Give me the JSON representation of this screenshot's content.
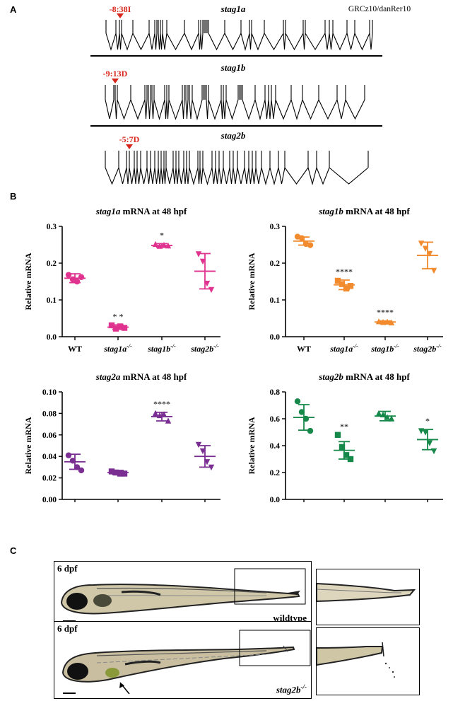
{
  "panels": {
    "a": "A",
    "b": "B",
    "c": "C"
  },
  "gene_structures": {
    "assembly": "GRCz10/danRer10",
    "genes": [
      {
        "name": "stag1a",
        "mutation": "-8:38I"
      },
      {
        "name": "stag1b",
        "mutation": "-9:13D"
      },
      {
        "name": "stag2b",
        "mutation": "-5:7D"
      }
    ]
  },
  "chart_data": [
    {
      "type": "scatter",
      "title_gene": "stag1a",
      "title_suffix": " mRNA at 48 hpf",
      "ylabel": "Relative mRNA",
      "ylim": [
        0,
        0.3
      ],
      "yticks": [
        0.0,
        0.1,
        0.2,
        0.3
      ],
      "ytick_labels": [
        "0.0",
        "0.1",
        "0.2",
        "0.3"
      ],
      "color": "#e0338f",
      "categories": [
        "WT",
        "stag1a",
        "stag1b",
        "stag2b"
      ],
      "cat_sup": [
        "",
        "-/-",
        "-/-",
        "-/-"
      ],
      "means": [
        0.159,
        0.026,
        0.248,
        0.178
      ],
      "sd": [
        0.012,
        0.006,
        0.005,
        0.048
      ],
      "points": [
        [
          0.168,
          0.156,
          0.15,
          0.162
        ],
        [
          0.031,
          0.022,
          0.028,
          0.024
        ],
        [
          0.251,
          0.246,
          0.249,
          0.247
        ],
        [
          0.225,
          0.205,
          0.145,
          0.128
        ]
      ],
      "markers": [
        "circle",
        "square",
        "triangle",
        "triangle-down"
      ],
      "significance": [
        "",
        "* *",
        "*",
        ""
      ]
    },
    {
      "type": "scatter",
      "title_gene": "stag1b",
      "title_suffix": " mRNA at 48 hpf",
      "ylabel": "Relative mRNA",
      "ylim": [
        0,
        0.3
      ],
      "yticks": [
        0.0,
        0.1,
        0.2,
        0.3
      ],
      "ytick_labels": [
        "0.0",
        "0.1",
        "0.2",
        "0.3"
      ],
      "color": "#f28a2e",
      "categories": [
        "WT",
        "stag1a",
        "stag1b",
        "stag2b"
      ],
      "cat_sup": [
        "",
        "-/-",
        "-/-",
        "-/-"
      ],
      "means": [
        0.26,
        0.141,
        0.04,
        0.221
      ],
      "sd": [
        0.011,
        0.013,
        0.003,
        0.036
      ],
      "points": [
        [
          0.272,
          0.268,
          0.252,
          0.249
        ],
        [
          0.152,
          0.143,
          0.131,
          0.138
        ],
        [
          0.041,
          0.039,
          0.04,
          0.038
        ],
        [
          0.254,
          0.24,
          0.226,
          0.18
        ]
      ],
      "markers": [
        "circle",
        "square",
        "triangle",
        "triangle-down"
      ],
      "significance": [
        "",
        "****",
        "****",
        ""
      ]
    },
    {
      "type": "scatter",
      "title_gene": "stag2a",
      "title_suffix": " mRNA at 48 hpf",
      "ylabel": "Relative mRNA",
      "ylim": [
        0,
        0.1
      ],
      "yticks": [
        0.0,
        0.02,
        0.04,
        0.06,
        0.08,
        0.1
      ],
      "ytick_labels": [
        "0.00",
        "0.02",
        "0.04",
        "0.06",
        "0.08",
        "0.10"
      ],
      "color": "#7a2e92",
      "categories": [
        "WT",
        "stag1a",
        "stag1b",
        "stag2b"
      ],
      "cat_sup": [
        "",
        "-/-",
        "-/-",
        "-/-"
      ],
      "means": [
        0.035,
        0.025,
        0.077,
        0.04
      ],
      "sd": [
        0.007,
        0.002,
        0.004,
        0.01
      ],
      "points": [
        [
          0.041,
          0.036,
          0.03,
          0.027
        ],
        [
          0.026,
          0.025,
          0.024,
          0.024
        ],
        [
          0.08,
          0.078,
          0.079,
          0.073
        ],
        [
          0.051,
          0.045,
          0.035,
          0.03
        ]
      ],
      "markers": [
        "circle",
        "square",
        "triangle",
        "triangle-down"
      ],
      "significance": [
        "",
        "",
        "****",
        ""
      ]
    },
    {
      "type": "scatter",
      "title_gene": "stag2b",
      "title_suffix": " mRNA at 48 hpf",
      "ylabel": "Relative mRNA",
      "ylim": [
        0,
        0.8
      ],
      "yticks": [
        0.0,
        0.2,
        0.4,
        0.6,
        0.8
      ],
      "ytick_labels": [
        "0.0",
        "0.2",
        "0.4",
        "0.6",
        "0.8"
      ],
      "color": "#16894a",
      "categories": [
        "WT",
        "stag1a",
        "stag1b",
        "stag2b"
      ],
      "cat_sup": [
        "",
        "-/-",
        "-/-",
        "-/-"
      ],
      "means": [
        0.61,
        0.365,
        0.62,
        0.445
      ],
      "sd": [
        0.095,
        0.065,
        0.035,
        0.075
      ],
      "points": [
        [
          0.73,
          0.65,
          0.6,
          0.51
        ],
        [
          0.48,
          0.39,
          0.33,
          0.3
        ],
        [
          0.64,
          0.63,
          0.61,
          0.6
        ],
        [
          0.51,
          0.5,
          0.42,
          0.36
        ]
      ],
      "markers": [
        "circle",
        "square",
        "triangle",
        "triangle-down"
      ],
      "significance": [
        "",
        "**",
        "",
        "*"
      ]
    }
  ],
  "images": {
    "wildtype": {
      "age": "6 dpf",
      "genotype": "wildtype"
    },
    "mutant": {
      "age": "6 dpf",
      "genotype_name": "stag2b",
      "genotype_sup": "-/-"
    }
  },
  "colors": {
    "mutation_red": "#d9261c"
  }
}
